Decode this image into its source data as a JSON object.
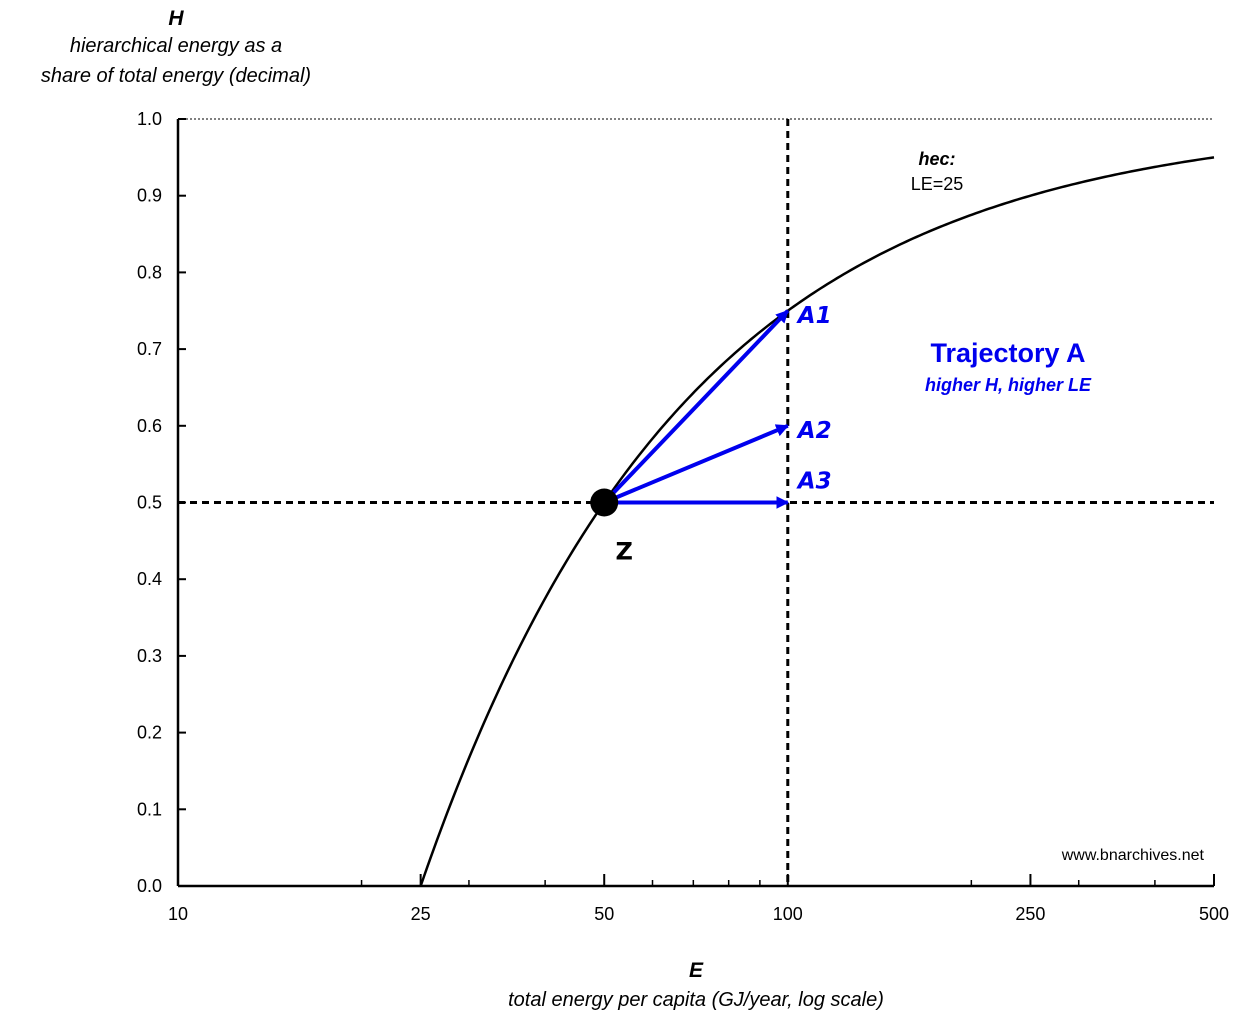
{
  "chart_data": {
    "type": "line",
    "x_axis": {
      "symbol": "E",
      "label": "total energy per capita (GJ/year, log scale)",
      "scale": "log",
      "range": [
        10,
        500
      ],
      "tick_labels": [
        "10",
        "25",
        "50",
        "100",
        "250",
        "500"
      ],
      "tick_values": [
        10,
        25,
        50,
        100,
        250,
        500
      ]
    },
    "y_axis": {
      "symbol": "H",
      "label_lines": [
        "hierarchical energy as a",
        "share of total energy (decimal)"
      ],
      "range": [
        0,
        1
      ],
      "tick_labels": [
        "0.0",
        "0.1",
        "0.2",
        "0.3",
        "0.4",
        "0.5",
        "0.6",
        "0.7",
        "0.8",
        "0.9",
        "1.0"
      ]
    },
    "curve": {
      "name": "hec:",
      "annotation": "LE=25",
      "formula": "H = 1 - LE / E",
      "LE": 25,
      "color": "#000000"
    },
    "reference_lines": {
      "horizontal_y": 0.5,
      "vertical_x": 100,
      "top_y": 1.0
    },
    "point": {
      "label": "Z",
      "x": 50,
      "y": 0.5
    },
    "arrows": [
      {
        "label": "A1",
        "from": [
          50,
          0.5
        ],
        "to": [
          100,
          0.75
        ]
      },
      {
        "label": "A2",
        "from": [
          50,
          0.5
        ],
        "to": [
          100,
          0.6
        ]
      },
      {
        "label": "A3",
        "from": [
          50,
          0.5
        ],
        "to": [
          100,
          0.5
        ]
      }
    ],
    "arrow_color": "#0000ee",
    "trajectory": {
      "title": "Trajectory A",
      "subtitle": "higher H, higher LE",
      "color": "#0000ee"
    },
    "watermark": "www.bnarchives.net"
  }
}
